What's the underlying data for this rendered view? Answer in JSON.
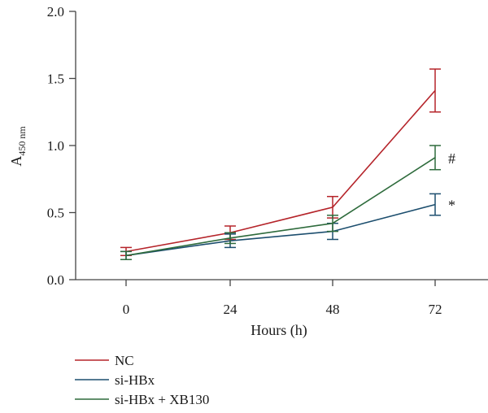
{
  "chart_data": {
    "type": "line",
    "xlabel": "Hours (h)",
    "ylabel": {
      "main": "A",
      "sub": "450 nm"
    },
    "x": [
      0,
      24,
      48,
      72
    ],
    "x_tick_labels": [
      "0",
      "24",
      "48",
      "72"
    ],
    "ylim": [
      0.0,
      2.0
    ],
    "y_ticks": [
      0.0,
      0.5,
      1.0,
      1.5,
      2.0
    ],
    "y_tick_labels": [
      "0.0",
      "0.5",
      "1.0",
      "1.5",
      "2.0"
    ],
    "series": [
      {
        "name": "NC",
        "color": "#b5242a",
        "values": [
          0.21,
          0.35,
          0.54,
          1.41
        ],
        "errors": [
          0.03,
          0.05,
          0.08,
          0.16
        ]
      },
      {
        "name": "si-HBx",
        "color": "#1c4e6e",
        "values": [
          0.18,
          0.29,
          0.36,
          0.56
        ],
        "errors": [
          0.03,
          0.05,
          0.06,
          0.08
        ]
      },
      {
        "name": "si-HBx + XB130",
        "color": "#2e6b3c",
        "values": [
          0.18,
          0.31,
          0.42,
          0.91
        ],
        "errors": [
          0.03,
          0.04,
          0.06,
          0.09
        ]
      }
    ],
    "annotations": [
      {
        "text": "#",
        "series": 2,
        "x": 72
      },
      {
        "text": "*",
        "series": 1,
        "x": 72
      }
    ],
    "legend_placement": "bottom-left",
    "grid": false
  }
}
